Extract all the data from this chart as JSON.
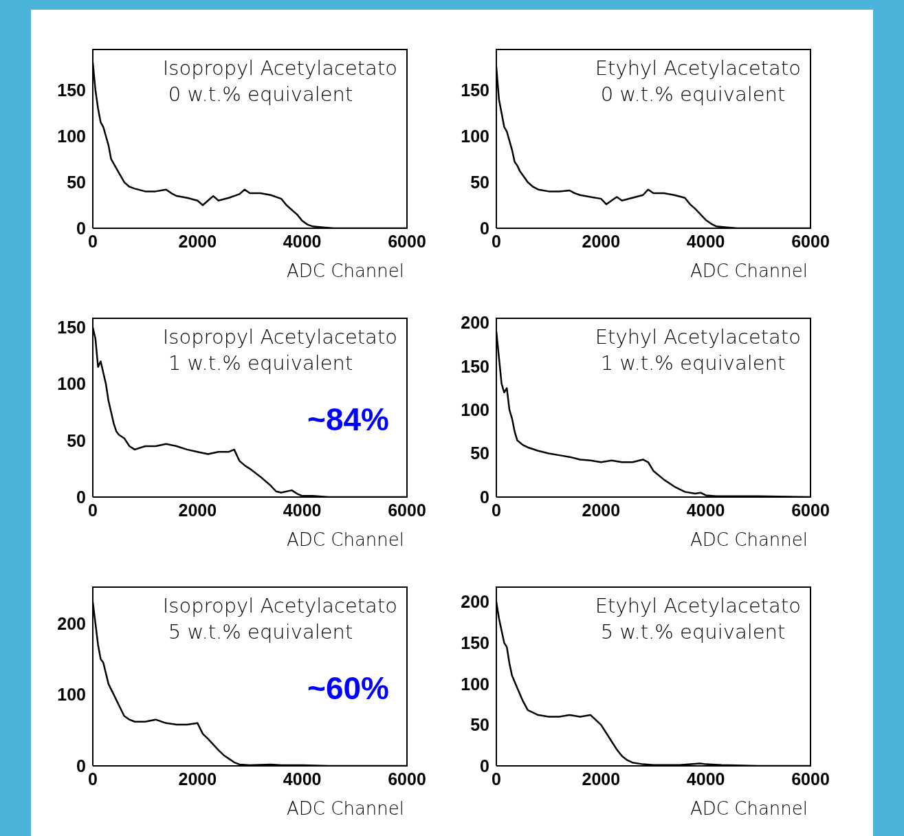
{
  "chart_data": [
    {
      "type": "line",
      "title": "Isopropyl Acetylacetato",
      "subtitle": "0 w.t.% equivalent",
      "xlabel": "ADC Channel",
      "xlim": [
        0,
        6000
      ],
      "xticks": [
        0,
        2000,
        4000,
        6000
      ],
      "ylim": [
        0,
        194
      ],
      "yticks": [
        0,
        50,
        100,
        150
      ],
      "grid": false,
      "legend": false,
      "series": [
        {
          "color": "#000000",
          "x": [
            0,
            50,
            100,
            150,
            200,
            250,
            300,
            350,
            400,
            450,
            500,
            600,
            700,
            800,
            1000,
            1200,
            1400,
            1500,
            1600,
            1800,
            2000,
            2100,
            2200,
            2300,
            2400,
            2600,
            2800,
            2900,
            3000,
            3200,
            3400,
            3600,
            3700,
            3800,
            3900,
            4000,
            4100,
            4200,
            4400,
            4600,
            5000,
            5500,
            6000
          ],
          "values": [
            180,
            150,
            130,
            115,
            110,
            100,
            90,
            75,
            70,
            65,
            60,
            50,
            45,
            43,
            40,
            40,
            42,
            38,
            35,
            33,
            30,
            25,
            30,
            35,
            30,
            33,
            37,
            42,
            38,
            38,
            36,
            32,
            25,
            20,
            15,
            8,
            4,
            2,
            1,
            0,
            0,
            0,
            0
          ]
        }
      ]
    },
    {
      "type": "line",
      "title": "Etyhyl Acetylacetato",
      "subtitle": "0 w.t.% equivalent",
      "xlabel": "ADC Channel",
      "xlim": [
        0,
        6000
      ],
      "xticks": [
        0,
        2000,
        4000,
        6000
      ],
      "ylim": [
        0,
        194
      ],
      "yticks": [
        0,
        50,
        100,
        150
      ],
      "grid": false,
      "legend": false,
      "series": [
        {
          "color": "#000000",
          "x": [
            0,
            50,
            100,
            150,
            200,
            250,
            300,
            350,
            400,
            450,
            500,
            600,
            700,
            800,
            1000,
            1200,
            1400,
            1500,
            1600,
            1800,
            2000,
            2100,
            2200,
            2300,
            2400,
            2600,
            2800,
            2900,
            3000,
            3200,
            3400,
            3600,
            3700,
            3800,
            3900,
            4000,
            4100,
            4200,
            4400,
            4600,
            5000,
            5500,
            6000
          ],
          "values": [
            175,
            140,
            125,
            110,
            105,
            95,
            85,
            72,
            68,
            62,
            58,
            50,
            45,
            42,
            40,
            40,
            41,
            38,
            36,
            34,
            32,
            26,
            30,
            34,
            30,
            33,
            36,
            42,
            38,
            38,
            36,
            33,
            26,
            21,
            15,
            9,
            5,
            2,
            1,
            0,
            0,
            0,
            0
          ]
        }
      ]
    },
    {
      "type": "line",
      "title": "Isopropyl Acetylacetato",
      "subtitle": "1 w.t.% equivalent",
      "xlabel": "ADC Channel",
      "annotations": [
        "~84%"
      ],
      "xlim": [
        0,
        6000
      ],
      "xticks": [
        0,
        2000,
        4000,
        6000
      ],
      "ylim": [
        0,
        158
      ],
      "yticks": [
        0,
        50,
        100,
        150
      ],
      "grid": false,
      "legend": false,
      "series": [
        {
          "color": "#000000",
          "x": [
            0,
            50,
            100,
            150,
            200,
            250,
            300,
            350,
            400,
            450,
            500,
            600,
            700,
            800,
            1000,
            1200,
            1400,
            1600,
            1800,
            2000,
            2200,
            2400,
            2600,
            2700,
            2800,
            2900,
            3000,
            3200,
            3400,
            3500,
            3600,
            3800,
            3900,
            4000,
            4200,
            4500,
            6000
          ],
          "values": [
            150,
            140,
            115,
            120,
            110,
            100,
            85,
            75,
            65,
            58,
            55,
            52,
            45,
            42,
            45,
            45,
            47,
            45,
            42,
            40,
            38,
            40,
            40,
            42,
            32,
            28,
            25,
            18,
            10,
            5,
            4,
            6,
            3,
            1,
            1,
            0,
            0
          ]
        }
      ]
    },
    {
      "type": "line",
      "title": "Etyhyl Acetylacetato",
      "subtitle": "1 w.t.% equivalent",
      "xlabel": "ADC Channel",
      "xlim": [
        0,
        6000
      ],
      "xticks": [
        0,
        2000,
        4000,
        6000
      ],
      "ylim": [
        0,
        205
      ],
      "yticks": [
        0,
        50,
        100,
        150,
        200
      ],
      "grid": false,
      "legend": false,
      "series": [
        {
          "color": "#000000",
          "x": [
            0,
            50,
            100,
            150,
            200,
            250,
            300,
            350,
            400,
            500,
            600,
            800,
            1000,
            1200,
            1400,
            1600,
            1800,
            2000,
            2200,
            2400,
            2600,
            2800,
            2900,
            3000,
            3200,
            3400,
            3600,
            3800,
            3900,
            4000,
            4200,
            4500,
            5000,
            6000
          ],
          "values": [
            190,
            160,
            130,
            120,
            125,
            100,
            90,
            75,
            65,
            60,
            57,
            53,
            50,
            48,
            46,
            43,
            42,
            40,
            42,
            40,
            40,
            43,
            40,
            30,
            20,
            12,
            6,
            4,
            5,
            2,
            1,
            1,
            1,
            0
          ]
        }
      ]
    },
    {
      "type": "line",
      "title": "Isopropyl Acetylacetato",
      "subtitle": "5 w.t.% equivalent",
      "xlabel": "ADC Channel",
      "annotations": [
        "~60%"
      ],
      "xlim": [
        0,
        6000
      ],
      "xticks": [
        0,
        2000,
        4000,
        6000
      ],
      "ylim": [
        0,
        251
      ],
      "yticks": [
        0,
        100,
        200
      ],
      "grid": false,
      "legend": false,
      "series": [
        {
          "color": "#000000",
          "x": [
            0,
            50,
            100,
            150,
            200,
            250,
            300,
            400,
            500,
            600,
            700,
            800,
            1000,
            1200,
            1400,
            1600,
            1800,
            2000,
            2100,
            2200,
            2300,
            2400,
            2500,
            2600,
            2700,
            2800,
            3000,
            3400,
            3600,
            3800,
            4000,
            4500,
            6000
          ],
          "values": [
            230,
            200,
            170,
            150,
            145,
            130,
            115,
            100,
            85,
            70,
            65,
            62,
            62,
            65,
            60,
            58,
            58,
            60,
            45,
            38,
            30,
            22,
            15,
            10,
            5,
            2,
            1,
            2,
            1,
            1,
            1,
            0,
            0
          ]
        }
      ]
    },
    {
      "type": "line",
      "title": "Etyhyl Acetylacetato",
      "subtitle": "5 w.t.% equivalent",
      "xlabel": "ADC Channel",
      "xlim": [
        0,
        6000
      ],
      "xticks": [
        0,
        2000,
        4000,
        6000
      ],
      "ylim": [
        0,
        218
      ],
      "yticks": [
        0,
        50,
        100,
        150,
        200
      ],
      "grid": false,
      "legend": false,
      "series": [
        {
          "color": "#000000",
          "x": [
            0,
            50,
            100,
            150,
            200,
            250,
            300,
            400,
            500,
            600,
            800,
            1000,
            1200,
            1400,
            1600,
            1800,
            2000,
            2100,
            2200,
            2300,
            2400,
            2500,
            2600,
            2800,
            3000,
            3500,
            3900,
            4000,
            4300,
            5000,
            6000
          ],
          "values": [
            200,
            180,
            165,
            150,
            145,
            125,
            110,
            95,
            80,
            68,
            62,
            60,
            60,
            62,
            60,
            62,
            50,
            40,
            30,
            20,
            12,
            7,
            4,
            2,
            1,
            1,
            3,
            2,
            1,
            0,
            0
          ]
        }
      ]
    }
  ]
}
